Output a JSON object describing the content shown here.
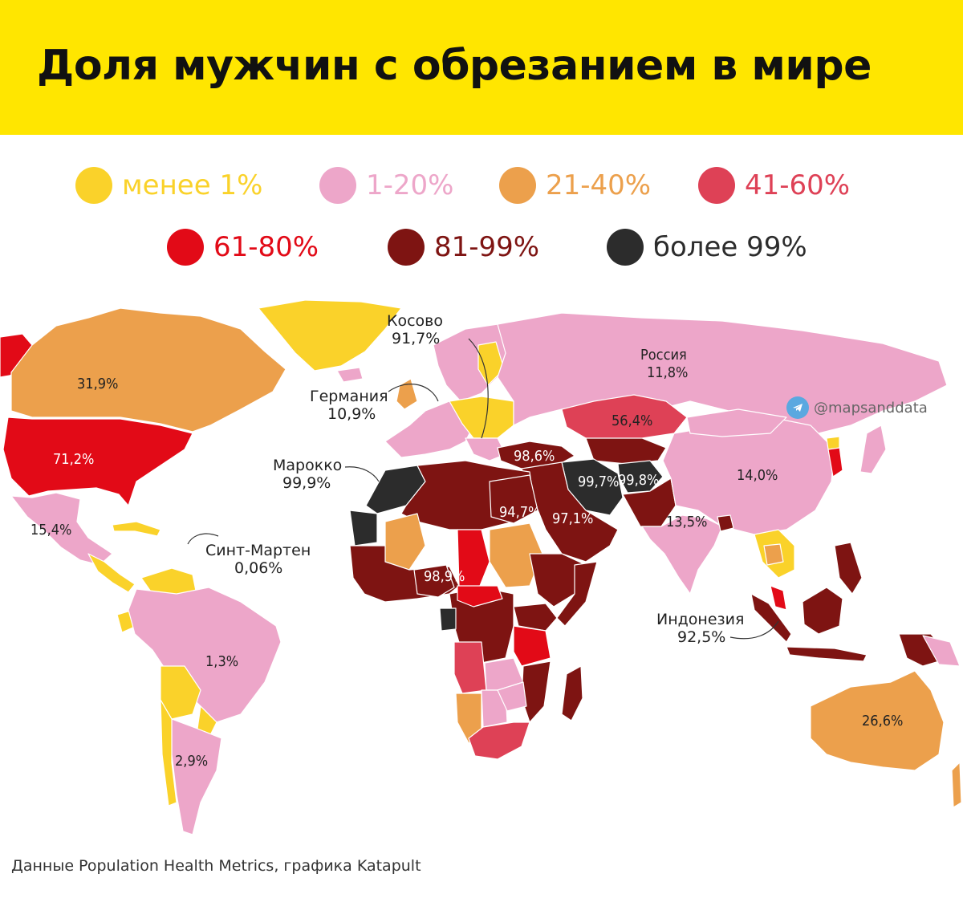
{
  "title": "Доля мужчин с обрезанием в мире",
  "colors": {
    "lt1": "#fad22a",
    "p1_20": "#eda6c9",
    "p21_40": "#eca04c",
    "p41_60": "#de4156",
    "p61_80": "#e20a17",
    "p81_99": "#7e1412",
    "gt99": "#2c2c2c",
    "ocean": "#ffffff"
  },
  "legend": [
    {
      "label": "менее 1%",
      "color": "#fad22a"
    },
    {
      "label": "1-20%",
      "color": "#eda6c9"
    },
    {
      "label": "21-40%",
      "color": "#eca04c"
    },
    {
      "label": "41-60%",
      "color": "#de4156"
    },
    {
      "label": "61-80%",
      "color": "#e20a17"
    },
    {
      "label": "81-99%",
      "color": "#7e1412"
    },
    {
      "label": "более 99%",
      "color": "#2c2c2c"
    }
  ],
  "labels": {
    "canada": "31,9%",
    "usa": "71,2%",
    "mexico": "15,4%",
    "brazil": "1,3%",
    "argentina": "2,9%",
    "russia_name": "Россия",
    "russia_value": "11,8%",
    "kazakhstan": "56,4%",
    "china": "14,0%",
    "india": "13,5%",
    "iran": "99,7%",
    "afghanistan": "99,8%",
    "turkey": "98,6%",
    "egypt": "94,7%",
    "saudi": "97,1%",
    "nigeria": "98,9%",
    "australia": "26,6%"
  },
  "callouts": {
    "kosovo_name": "Косово",
    "kosovo_value": "91,7%",
    "germany_name": "Германия",
    "germany_value": "10,9%",
    "morocco_name": "Марокко",
    "morocco_value": "99,9%",
    "sint_maarten_name": "Синт-Мартен",
    "sint_maarten_value": "0,06%",
    "indonesia_name": "Индонезия",
    "indonesia_value": "92,5%"
  },
  "handle": "@mapsanddata",
  "source": "Данные Population Health Metrics, графика Katapult"
}
